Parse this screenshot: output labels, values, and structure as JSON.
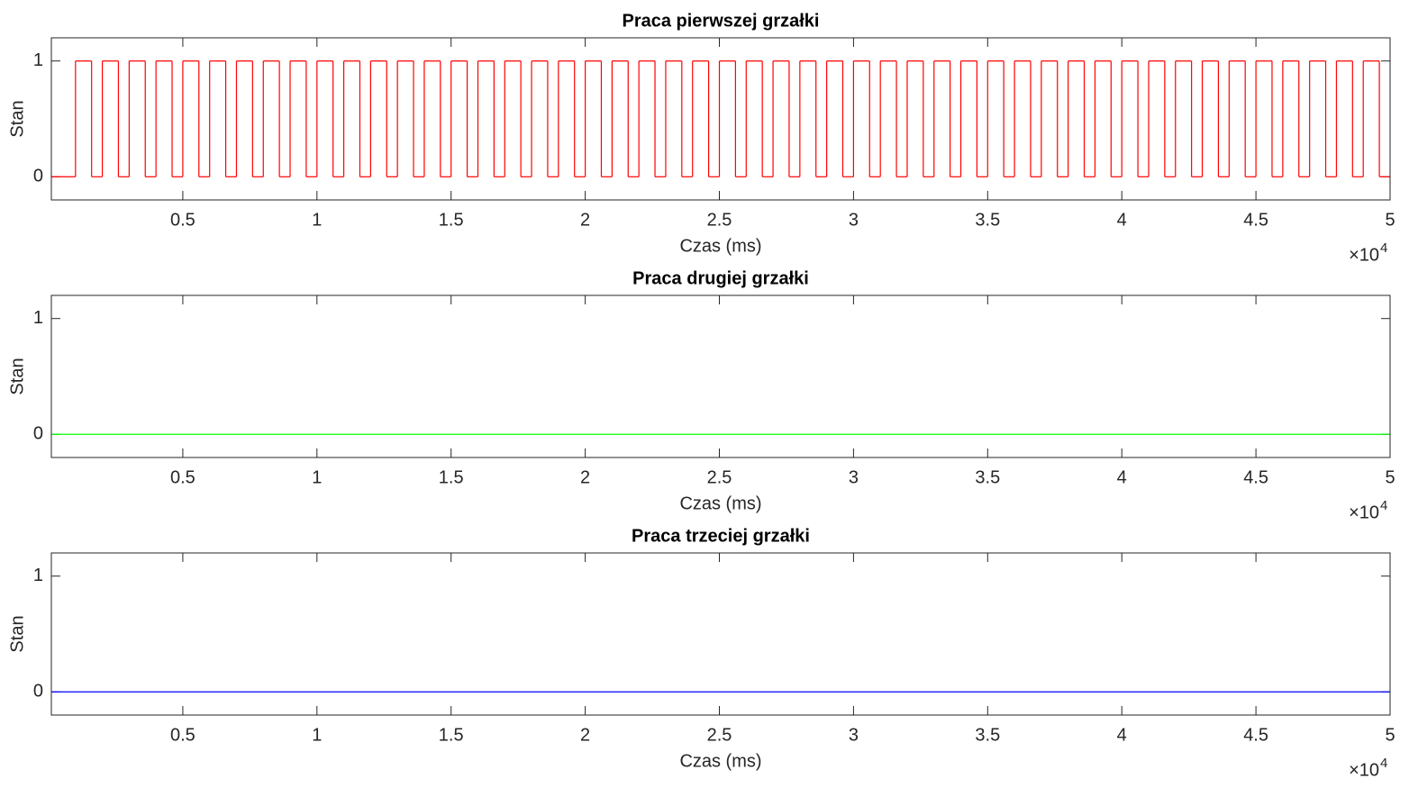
{
  "chart_data": [
    {
      "type": "stairs",
      "title": "Praca pierwszej grzałki",
      "xlabel": "Czas (ms)",
      "ylabel": "Stan",
      "color": "#ff0000",
      "x": [
        100,
        1000,
        1600,
        2000,
        2600,
        3000,
        3600,
        4000,
        4600,
        5000,
        5600,
        6000,
        6600,
        7000,
        7600,
        8000,
        8600,
        9000,
        9600,
        10000,
        10600,
        11000,
        11600,
        12000,
        12600,
        13000,
        13600,
        14000,
        14600,
        15000,
        15600,
        16000,
        16600,
        17000,
        17600,
        18000,
        18600,
        19000,
        19600,
        20000,
        20600,
        21000,
        21600,
        22000,
        22600,
        23000,
        23600,
        24000,
        24600,
        25000,
        25600,
        26000,
        26600,
        27000,
        27600,
        28000,
        28600,
        29000,
        29600,
        30000,
        30600,
        31000,
        31600,
        32000,
        32600,
        33000,
        33600,
        34000,
        34600,
        35000,
        35600,
        36000,
        36600,
        37000,
        37600,
        38000,
        38600,
        39000,
        39600,
        40000,
        40600,
        41000,
        41600,
        42000,
        42600,
        43000,
        43600,
        44000,
        44600,
        45000,
        45600,
        46000,
        46600,
        47000,
        47600,
        48000,
        48600,
        49000,
        49600
      ],
      "values": [
        0,
        1,
        0,
        1,
        0,
        1,
        0,
        1,
        0,
        1,
        0,
        1,
        0,
        1,
        0,
        1,
        0,
        1,
        0,
        1,
        0,
        1,
        0,
        1,
        0,
        1,
        0,
        1,
        0,
        1,
        0,
        1,
        0,
        1,
        0,
        1,
        0,
        1,
        0,
        1,
        0,
        1,
        0,
        1,
        0,
        1,
        0,
        1,
        0,
        1,
        0,
        1,
        0,
        1,
        0,
        1,
        0,
        1,
        0,
        1,
        0,
        1,
        0,
        1,
        0,
        1,
        0,
        1,
        0,
        1,
        0,
        1,
        0,
        1,
        0,
        1,
        0,
        1,
        0,
        1,
        0,
        1,
        0,
        1,
        0,
        1,
        0,
        1,
        0,
        1,
        0,
        1,
        0,
        1,
        0,
        1,
        0,
        1,
        0
      ],
      "xlim": [
        100,
        50000
      ],
      "ylim": [
        -0.2,
        1.2
      ],
      "xticks": [
        {
          "value": 5000,
          "label": "0.5"
        },
        {
          "value": 10000,
          "label": "1"
        },
        {
          "value": 15000,
          "label": "1.5"
        },
        {
          "value": 20000,
          "label": "2"
        },
        {
          "value": 25000,
          "label": "2.5"
        },
        {
          "value": 30000,
          "label": "3"
        },
        {
          "value": 35000,
          "label": "3.5"
        },
        {
          "value": 40000,
          "label": "4"
        },
        {
          "value": 45000,
          "label": "4.5"
        },
        {
          "value": 50000,
          "label": "5"
        }
      ],
      "yticks": [
        0,
        1
      ],
      "x_exponent": {
        "base": "×10",
        "power": "4"
      }
    },
    {
      "type": "stairs",
      "title": "Praca drugiej grzałki",
      "xlabel": "Czas (ms)",
      "ylabel": "Stan",
      "color": "#00ff00",
      "x": [
        100
      ],
      "values": [
        0
      ],
      "xlim": [
        100,
        50000
      ],
      "ylim": [
        -0.2,
        1.2
      ],
      "xticks": [
        {
          "value": 5000,
          "label": "0.5"
        },
        {
          "value": 10000,
          "label": "1"
        },
        {
          "value": 15000,
          "label": "1.5"
        },
        {
          "value": 20000,
          "label": "2"
        },
        {
          "value": 25000,
          "label": "2.5"
        },
        {
          "value": 30000,
          "label": "3"
        },
        {
          "value": 35000,
          "label": "3.5"
        },
        {
          "value": 40000,
          "label": "4"
        },
        {
          "value": 45000,
          "label": "4.5"
        },
        {
          "value": 50000,
          "label": "5"
        }
      ],
      "yticks": [
        0,
        1
      ],
      "x_exponent": {
        "base": "×10",
        "power": "4"
      }
    },
    {
      "type": "stairs",
      "title": "Praca trzeciej grzałki",
      "xlabel": "Czas (ms)",
      "ylabel": "Stan",
      "color": "#0000ff",
      "x": [
        100
      ],
      "values": [
        0
      ],
      "xlim": [
        100,
        50000
      ],
      "ylim": [
        -0.2,
        1.2
      ],
      "xticks": [
        {
          "value": 5000,
          "label": "0.5"
        },
        {
          "value": 10000,
          "label": "1"
        },
        {
          "value": 15000,
          "label": "1.5"
        },
        {
          "value": 20000,
          "label": "2"
        },
        {
          "value": 25000,
          "label": "2.5"
        },
        {
          "value": 30000,
          "label": "3"
        },
        {
          "value": 35000,
          "label": "3.5"
        },
        {
          "value": 40000,
          "label": "4"
        },
        {
          "value": 45000,
          "label": "4.5"
        },
        {
          "value": 50000,
          "label": "5"
        }
      ],
      "yticks": [
        0,
        1
      ],
      "x_exponent": {
        "base": "×10",
        "power": "4"
      }
    }
  ]
}
